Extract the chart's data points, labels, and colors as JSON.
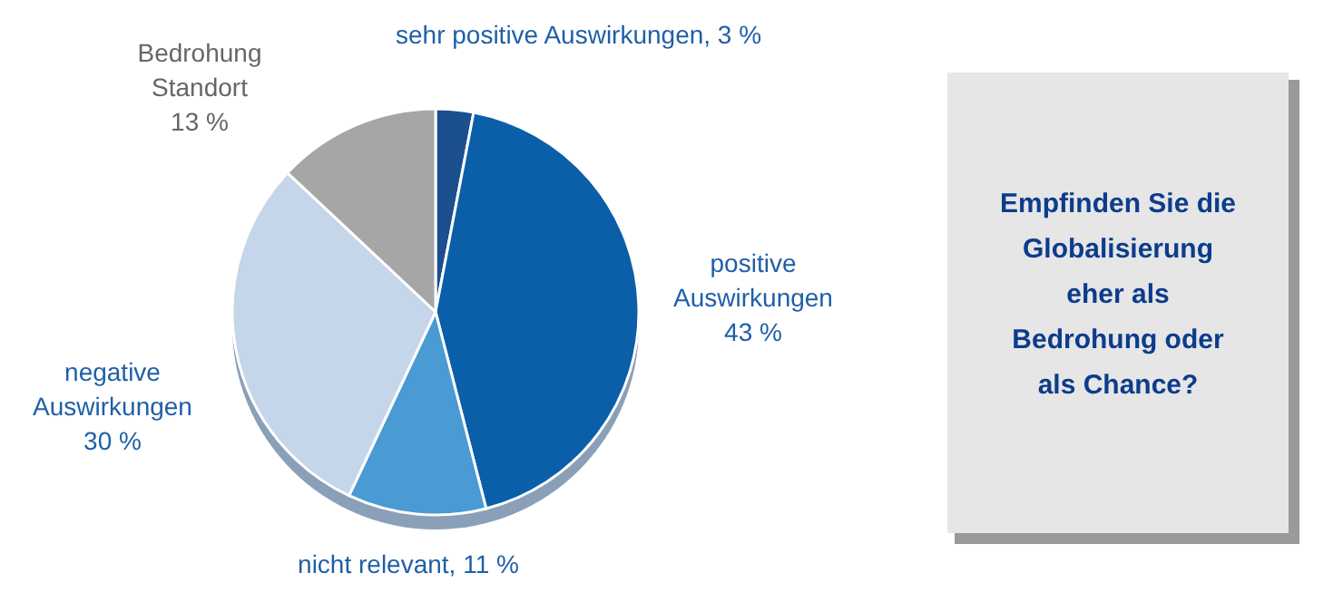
{
  "chart_data": {
    "type": "pie",
    "categories": [
      "sehr positive Auswirkungen",
      "positive Auswirkungen",
      "nicht relevant",
      "negative Auswirkungen",
      "Bedrohung Standort"
    ],
    "values": [
      3,
      43,
      11,
      30,
      13
    ],
    "value_labels": [
      "3 %",
      "43 %",
      "11 %",
      "30 %",
      "13 %"
    ],
    "colors": [
      "#1b4f8e",
      "#0b5ea8",
      "#4a9ad4",
      "#c5d5ea",
      "#a6a6a6"
    ],
    "annotations": [
      "Empfinden Sie die Globalisierung eher als Bedrohung oder als Chance?"
    ]
  }
}
